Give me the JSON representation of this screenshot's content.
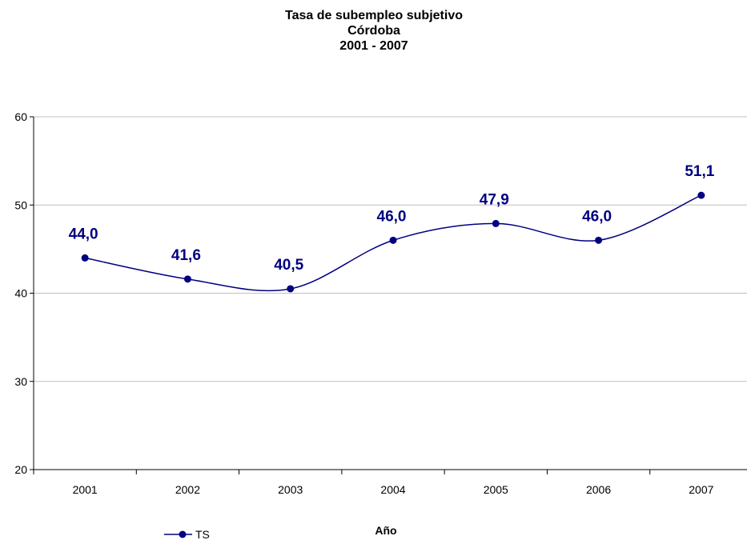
{
  "chart_data": {
    "type": "line",
    "title_lines": [
      "Tasa de subempleo subjetivo",
      "Córdoba",
      "2001 - 2007"
    ],
    "xlabel": "Año",
    "ylabel": "",
    "categories": [
      "2001",
      "2002",
      "2003",
      "2004",
      "2005",
      "2006",
      "2007"
    ],
    "series": [
      {
        "name": "TS",
        "values": [
          44.0,
          41.6,
          40.5,
          46.0,
          47.9,
          46.0,
          51.1
        ],
        "labels": [
          "44,0",
          "41,6",
          "40,5",
          "46,0",
          "47,9",
          "46,0",
          "51,1"
        ],
        "color": "#000080"
      }
    ],
    "ylim": [
      20,
      60
    ],
    "yticks": [
      "20",
      "30",
      "40",
      "50",
      "60"
    ],
    "grid": true,
    "smooth": true,
    "legend_position": "bottom-left"
  }
}
